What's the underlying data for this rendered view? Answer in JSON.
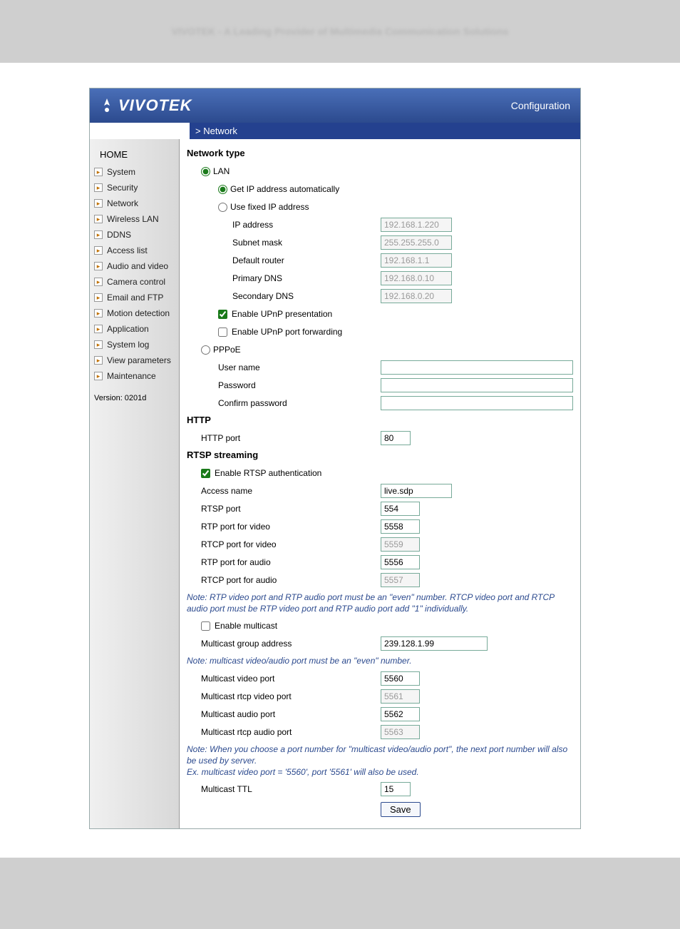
{
  "topbar": {
    "blurred_text": "VIVOTEK - A Leading Provider of Multimedia Communication Solutions"
  },
  "header": {
    "logo_text": "VIVOTEK",
    "right_label": "Configuration"
  },
  "section_bar": "> Network",
  "sidebar": {
    "home": "HOME",
    "items": [
      "System",
      "Security",
      "Network",
      "Wireless LAN",
      "DDNS",
      "Access list",
      "Audio and video",
      "Camera control",
      "Email and FTP",
      "Motion detection",
      "Application",
      "System log",
      "View parameters",
      "Maintenance"
    ],
    "version": "Version: 0201d"
  },
  "net": {
    "heading_network_type": "Network type",
    "lan_label": "LAN",
    "get_ip_label": "Get IP address automatically",
    "fixed_ip_label": "Use fixed IP address",
    "ip_label": "IP address",
    "ip_val": "192.168.1.220",
    "subnet_label": "Subnet mask",
    "subnet_val": "255.255.255.0",
    "router_label": "Default router",
    "router_val": "192.168.1.1",
    "dns1_label": "Primary DNS",
    "dns1_val": "192.168.0.10",
    "dns2_label": "Secondary DNS",
    "dns2_val": "192.168.0.20",
    "upnp_pres_label": "Enable UPnP presentation",
    "upnp_port_label": "Enable UPnP port forwarding",
    "pppoe_label": "PPPoE",
    "user_label": "User name",
    "pass_label": "Password",
    "confirm_label": "Confirm password"
  },
  "http": {
    "heading": "HTTP",
    "port_label": "HTTP port",
    "port_val": "80"
  },
  "rtsp": {
    "heading": "RTSP streaming",
    "auth_label": "Enable RTSP authentication",
    "access_label": "Access name",
    "access_val": "live.sdp",
    "port_label": "RTSP port",
    "port_val": "554",
    "rtp_v_label": "RTP port for video",
    "rtp_v_val": "5558",
    "rtcp_v_label": "RTCP port for video",
    "rtcp_v_val": "5559",
    "rtp_a_label": "RTP port for audio",
    "rtp_a_val": "5556",
    "rtcp_a_label": "RTCP port for audio",
    "rtcp_a_val": "5557",
    "note1": "Note: RTP video port and RTP audio port must be an \"even\" number. RTCP video port and RTCP audio port must be RTP video port and RTP audio port add \"1\" individually.",
    "mcast_enable_label": "Enable multicast",
    "mcast_addr_label": "Multicast group address",
    "mcast_addr_val": "239.128.1.99",
    "note2": "Note: multicast video/audio port must be an \"even\" number.",
    "mcast_v_label": "Multicast video port",
    "mcast_v_val": "5560",
    "mcast_rv_label": "Multicast rtcp video port",
    "mcast_rv_val": "5561",
    "mcast_a_label": "Multicast audio port",
    "mcast_a_val": "5562",
    "mcast_ra_label": "Multicast rtcp audio port",
    "mcast_ra_val": "5563",
    "note3": "Note: When you choose a port number for \"multicast video/audio port\", the next port number will also be used by server.\nEx. multicast video port = '5560', port '5561' will also be used.",
    "ttl_label": "Multicast TTL",
    "ttl_val": "15"
  },
  "buttons": {
    "save": "Save"
  }
}
